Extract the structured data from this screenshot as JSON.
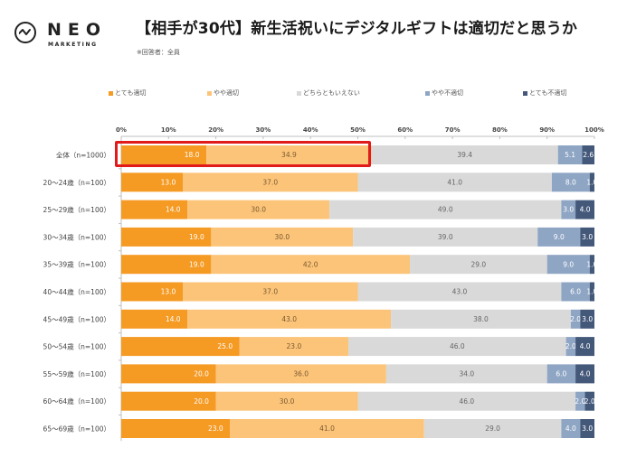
{
  "logo": {
    "name": "NEO",
    "sub": "MARKETING",
    "icon": "wave-circle-icon"
  },
  "header": {
    "title": "【相手が30代】新生活祝いにデジタルギフトは適切だと思うか",
    "subtitle": "※回答者：全員"
  },
  "colors": {
    "very_appropriate": "#f59a23",
    "somewhat_appropriate": "#fcc479",
    "neutral": "#d9d9d9",
    "somewhat_inappropriate": "#8ea5c4",
    "very_inappropriate": "#44587a",
    "highlight": "#e11a1a"
  },
  "chart_data": {
    "type": "bar",
    "orientation": "horizontal",
    "stacked": "percent",
    "title": "【相手が30代】新生活祝いにデジタルギフトは適切だと思うか",
    "subtitle": "※回答者：全員",
    "xlabel": "",
    "ylabel": "",
    "xlim": [
      0,
      100
    ],
    "x_ticks": [
      "0%",
      "10%",
      "20%",
      "30%",
      "40%",
      "50%",
      "60%",
      "70%",
      "80%",
      "90%",
      "100%"
    ],
    "legend_position": "top",
    "categories": [
      "全体（n=1000）",
      "20～24歳（n=100）",
      "25～29歳（n=100）",
      "30～34歳（n=100）",
      "35～39歳（n=100）",
      "40～44歳（n=100）",
      "45～49歳（n=100）",
      "50～54歳（n=100）",
      "55～59歳（n=100）",
      "60～64歳（n=100）",
      "65～69歳（n=100）"
    ],
    "series": [
      {
        "name": "とても適切",
        "color": "#f59a23",
        "label_color": "#ffffff",
        "values": [
          18.0,
          13.0,
          14.0,
          19.0,
          19.0,
          13.0,
          14.0,
          25.0,
          20.0,
          20.0,
          23.0
        ]
      },
      {
        "name": "やや適切",
        "color": "#fcc479",
        "label_color": "#7a5a30",
        "values": [
          34.9,
          37.0,
          30.0,
          30.0,
          42.0,
          37.0,
          43.0,
          23.0,
          36.0,
          30.0,
          41.0
        ]
      },
      {
        "name": "どちらともいえない",
        "color": "#d9d9d9",
        "label_color": "#666666",
        "values": [
          39.4,
          41.0,
          49.0,
          39.0,
          29.0,
          43.0,
          38.0,
          46.0,
          34.0,
          46.0,
          29.0
        ]
      },
      {
        "name": "やや不適切",
        "color": "#8ea5c4",
        "label_color": "#ffffff",
        "values": [
          5.1,
          8.0,
          3.0,
          9.0,
          9.0,
          6.0,
          2.0,
          2.0,
          6.0,
          2.0,
          4.0
        ]
      },
      {
        "name": "とても不適切",
        "color": "#44587a",
        "label_color": "#ffffff",
        "values": [
          2.6,
          1.0,
          4.0,
          3.0,
          1.0,
          1.0,
          3.0,
          4.0,
          4.0,
          2.0,
          3.0
        ]
      }
    ],
    "annotations": [
      {
        "type": "highlight-box",
        "target": "全体（n=1000）",
        "covers_series": [
          "とても適切",
          "やや適切"
        ]
      }
    ]
  }
}
